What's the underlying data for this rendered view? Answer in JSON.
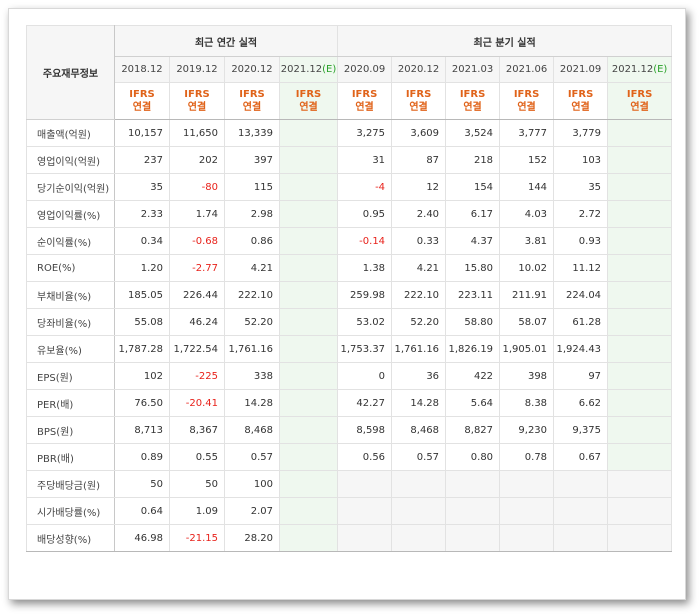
{
  "table": {
    "corner_label": "주요재무정보",
    "group_annual": "최근 연간 실적",
    "group_quarter": "최근 분기 실적",
    "annual_periods": [
      {
        "label": "2018.12",
        "estimate": false
      },
      {
        "label": "2019.12",
        "estimate": false
      },
      {
        "label": "2020.12",
        "estimate": false
      },
      {
        "label": "2021.12",
        "estimate": true
      }
    ],
    "quarter_periods": [
      {
        "label": "2020.09",
        "estimate": false
      },
      {
        "label": "2020.12",
        "estimate": false
      },
      {
        "label": "2021.03",
        "estimate": false
      },
      {
        "label": "2021.06",
        "estimate": false
      },
      {
        "label": "2021.09",
        "estimate": false
      },
      {
        "label": "2021.12",
        "estimate": true
      }
    ],
    "estimate_mark": "(E)",
    "standard_line1": "IFRS",
    "standard_line2": "연결",
    "rows": [
      {
        "label": "매출액(억원)",
        "annual": [
          "10,157",
          "11,650",
          "13,339",
          ""
        ],
        "quarter": [
          "3,275",
          "3,609",
          "3,524",
          "3,777",
          "3,779",
          ""
        ]
      },
      {
        "label": "영업이익(억원)",
        "annual": [
          "237",
          "202",
          "397",
          ""
        ],
        "quarter": [
          "31",
          "87",
          "218",
          "152",
          "103",
          ""
        ]
      },
      {
        "label": "당기순이익(억원)",
        "annual": [
          "35",
          "-80",
          "115",
          ""
        ],
        "quarter": [
          "-4",
          "12",
          "154",
          "144",
          "35",
          ""
        ]
      },
      {
        "label": "영업이익률(%)",
        "annual": [
          "2.33",
          "1.74",
          "2.98",
          ""
        ],
        "quarter": [
          "0.95",
          "2.40",
          "6.17",
          "4.03",
          "2.72",
          ""
        ]
      },
      {
        "label": "순이익률(%)",
        "annual": [
          "0.34",
          "-0.68",
          "0.86",
          ""
        ],
        "quarter": [
          "-0.14",
          "0.33",
          "4.37",
          "3.81",
          "0.93",
          ""
        ]
      },
      {
        "label": "ROE(%)",
        "annual": [
          "1.20",
          "-2.77",
          "4.21",
          ""
        ],
        "quarter": [
          "1.38",
          "4.21",
          "15.80",
          "10.02",
          "11.12",
          ""
        ]
      },
      {
        "label": "부채비율(%)",
        "annual": [
          "185.05",
          "226.44",
          "222.10",
          ""
        ],
        "quarter": [
          "259.98",
          "222.10",
          "223.11",
          "211.91",
          "224.04",
          ""
        ]
      },
      {
        "label": "당좌비율(%)",
        "annual": [
          "55.08",
          "46.24",
          "52.20",
          ""
        ],
        "quarter": [
          "53.02",
          "52.20",
          "58.80",
          "58.07",
          "61.28",
          ""
        ]
      },
      {
        "label": "유보율(%)",
        "annual": [
          "1,787.28",
          "1,722.54",
          "1,761.16",
          ""
        ],
        "quarter": [
          "1,753.37",
          "1,761.16",
          "1,826.19",
          "1,905.01",
          "1,924.43",
          ""
        ]
      },
      {
        "label": "EPS(원)",
        "annual": [
          "102",
          "-225",
          "338",
          ""
        ],
        "quarter": [
          "0",
          "36",
          "422",
          "398",
          "97",
          ""
        ]
      },
      {
        "label": "PER(배)",
        "annual": [
          "76.50",
          "-20.41",
          "14.28",
          ""
        ],
        "quarter": [
          "42.27",
          "14.28",
          "5.64",
          "8.38",
          "6.62",
          ""
        ]
      },
      {
        "label": "BPS(원)",
        "annual": [
          "8,713",
          "8,367",
          "8,468",
          ""
        ],
        "quarter": [
          "8,598",
          "8,468",
          "8,827",
          "9,230",
          "9,375",
          ""
        ]
      },
      {
        "label": "PBR(배)",
        "annual": [
          "0.89",
          "0.55",
          "0.57",
          ""
        ],
        "quarter": [
          "0.56",
          "0.57",
          "0.80",
          "0.78",
          "0.67",
          ""
        ]
      },
      {
        "label": "주당배당금(원)",
        "annual": [
          "50",
          "50",
          "100",
          ""
        ],
        "quarter": null
      },
      {
        "label": "시가배당률(%)",
        "annual": [
          "0.64",
          "1.09",
          "2.07",
          ""
        ],
        "quarter": null
      },
      {
        "label": "배당성향(%)",
        "annual": [
          "46.98",
          "-21.15",
          "28.20",
          ""
        ],
        "quarter": null
      }
    ],
    "group_starts": [
      0,
      3,
      6,
      9,
      13
    ]
  }
}
